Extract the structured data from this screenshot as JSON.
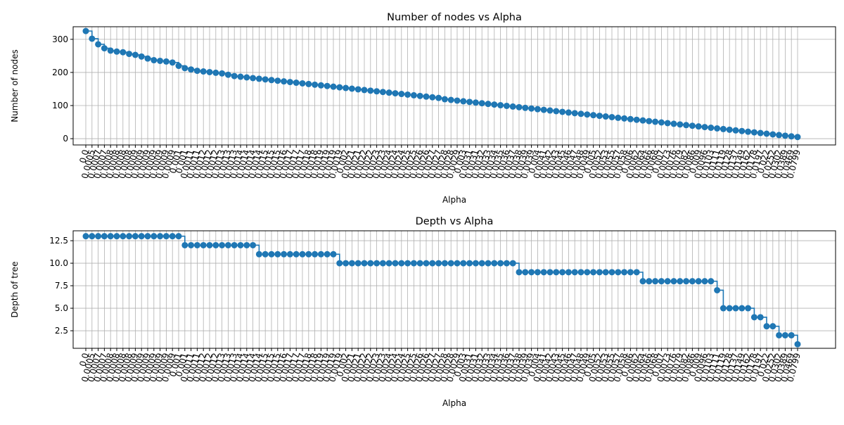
{
  "chart_data": [
    {
      "type": "line",
      "title": "Number of nodes vs Alpha",
      "xlabel": "Alpha",
      "ylabel": "Number of nodes",
      "drawstyle": "steps-post",
      "marker": "circle",
      "grid": true,
      "categories": [
        "0.0",
        "0.0005",
        "0.0007",
        "0.0007",
        "0.0008",
        "0.0008",
        "0.0008",
        "0.0008",
        "0.0009",
        "0.0009",
        "0.0009",
        "0.0009",
        "0.0009",
        "0.0009",
        "0.0009",
        "0.001",
        "0.001",
        "0.0011",
        "0.0011",
        "0.0012",
        "0.0012",
        "0.0012",
        "0.0013",
        "0.0013",
        "0.0013",
        "0.0014",
        "0.0014",
        "0.0014",
        "0.0014",
        "0.0015",
        "0.0015",
        "0.0015",
        "0.0016",
        "0.0017",
        "0.0017",
        "0.0017",
        "0.0018",
        "0.0018",
        "0.0019",
        "0.0019",
        "0.0019",
        "0.0019",
        "0.002",
        "0.0021",
        "0.0021",
        "0.0022",
        "0.0022",
        "0.0023",
        "0.0023",
        "0.0024",
        "0.0024",
        "0.0024",
        "0.0025",
        "0.0025",
        "0.0026",
        "0.0026",
        "0.0027",
        "0.0027",
        "0.0028",
        "0.0028",
        "0.0029",
        "0.003",
        "0.0031",
        "0.0031",
        "0.0032",
        "0.0033",
        "0.0034",
        "0.0035",
        "0.0036",
        "0.0037",
        "0.0038",
        "0.0039",
        "0.0039",
        "0.004",
        "0.0041",
        "0.0042",
        "0.0043",
        "0.0045",
        "0.0046",
        "0.0047",
        "0.0048",
        "0.0049",
        "0.005",
        "0.0052",
        "0.0053",
        "0.0055",
        "0.0057",
        "0.0058",
        "0.006",
        "0.0062",
        "0.0064",
        "0.0066",
        "0.0068",
        "0.007",
        "0.0073",
        "0.0076",
        "0.0079",
        "0.0082",
        "0.0086",
        "0.009",
        "0.0096",
        "0.0103",
        "0.0111",
        "0.0119",
        "0.0128",
        "0.0137",
        "0.0149",
        "0.0162",
        "0.0178",
        "0.0197",
        "0.022",
        "0.0252",
        "0.0302",
        "0.0389",
        "0.0469",
        "0.0799"
      ],
      "series": [
        {
          "name": "nodes",
          "color": "#1f77b4",
          "values": [
            325,
            302,
            285,
            273,
            266,
            263,
            261,
            256,
            253,
            248,
            242,
            237,
            235,
            233,
            230,
            220,
            213,
            209,
            205,
            203,
            201,
            199,
            197,
            193,
            189,
            187,
            185,
            183,
            181,
            179,
            177,
            175,
            173,
            171,
            169,
            167,
            165,
            163,
            161,
            159,
            157,
            155,
            153,
            151,
            149,
            147,
            145,
            143,
            141,
            139,
            137,
            135,
            133,
            131,
            129,
            127,
            125,
            123,
            119,
            117,
            115,
            113,
            111,
            109,
            107,
            105,
            103,
            101,
            99,
            97,
            95,
            93,
            91,
            89,
            87,
            85,
            83,
            81,
            79,
            77,
            75,
            73,
            71,
            69,
            67,
            65,
            63,
            61,
            59,
            57,
            55,
            53,
            51,
            49,
            47,
            45,
            43,
            41,
            39,
            37,
            35,
            33,
            31,
            29,
            27,
            25,
            23,
            21,
            19,
            17,
            15,
            13,
            11,
            9,
            7,
            5
          ]
        }
      ],
      "ylim": [
        -19,
        338
      ],
      "yticks": [
        0,
        100,
        200,
        300
      ]
    },
    {
      "type": "line",
      "title": "Depth vs Alpha",
      "xlabel": "Alpha",
      "ylabel": "Depth of tree",
      "drawstyle": "steps-post",
      "marker": "circle",
      "grid": true,
      "categories": [
        "0.0",
        "0.0005",
        "0.0007",
        "0.0007",
        "0.0008",
        "0.0008",
        "0.0008",
        "0.0008",
        "0.0009",
        "0.0009",
        "0.0009",
        "0.0009",
        "0.0009",
        "0.0009",
        "0.0009",
        "0.001",
        "0.001",
        "0.0011",
        "0.0011",
        "0.0012",
        "0.0012",
        "0.0012",
        "0.0013",
        "0.0013",
        "0.0013",
        "0.0014",
        "0.0014",
        "0.0014",
        "0.0014",
        "0.0015",
        "0.0015",
        "0.0015",
        "0.0016",
        "0.0017",
        "0.0017",
        "0.0017",
        "0.0018",
        "0.0018",
        "0.0019",
        "0.0019",
        "0.0019",
        "0.0019",
        "0.002",
        "0.0021",
        "0.0021",
        "0.0022",
        "0.0022",
        "0.0023",
        "0.0023",
        "0.0024",
        "0.0024",
        "0.0024",
        "0.0025",
        "0.0025",
        "0.0026",
        "0.0026",
        "0.0027",
        "0.0027",
        "0.0028",
        "0.0028",
        "0.0029",
        "0.003",
        "0.0031",
        "0.0031",
        "0.0032",
        "0.0033",
        "0.0034",
        "0.0035",
        "0.0036",
        "0.0037",
        "0.0038",
        "0.0039",
        "0.0039",
        "0.004",
        "0.0041",
        "0.0042",
        "0.0043",
        "0.0045",
        "0.0046",
        "0.0047",
        "0.0048",
        "0.0049",
        "0.005",
        "0.0052",
        "0.0053",
        "0.0055",
        "0.0057",
        "0.0058",
        "0.006",
        "0.0062",
        "0.0064",
        "0.0066",
        "0.0068",
        "0.007",
        "0.0073",
        "0.0076",
        "0.0079",
        "0.0082",
        "0.0086",
        "0.009",
        "0.0096",
        "0.0103",
        "0.0111",
        "0.0119",
        "0.0128",
        "0.0137",
        "0.0149",
        "0.0162",
        "0.0178",
        "0.0197",
        "0.022",
        "0.0252",
        "0.0302",
        "0.0389",
        "0.0469",
        "0.0799"
      ],
      "series": [
        {
          "name": "depth",
          "color": "#1f77b4",
          "values": [
            13,
            13,
            13,
            13,
            13,
            13,
            13,
            13,
            13,
            13,
            13,
            13,
            13,
            13,
            13,
            13,
            12,
            12,
            12,
            12,
            12,
            12,
            12,
            12,
            12,
            12,
            12,
            12,
            11,
            11,
            11,
            11,
            11,
            11,
            11,
            11,
            11,
            11,
            11,
            11,
            11,
            10,
            10,
            10,
            10,
            10,
            10,
            10,
            10,
            10,
            10,
            10,
            10,
            10,
            10,
            10,
            10,
            10,
            10,
            10,
            10,
            10,
            10,
            10,
            10,
            10,
            10,
            10,
            10,
            10,
            9,
            9,
            9,
            9,
            9,
            9,
            9,
            9,
            9,
            9,
            9,
            9,
            9,
            9,
            9,
            9,
            9,
            9,
            9,
            9,
            8,
            8,
            8,
            8,
            8,
            8,
            8,
            8,
            8,
            8,
            8,
            8,
            7,
            5,
            5,
            5,
            5,
            5,
            4,
            4,
            3,
            3,
            2,
            2,
            2,
            1
          ]
        }
      ],
      "ylim": [
        0.55,
        13.6
      ],
      "yticks": [
        2.5,
        {
          "value": 5,
          "label": "5.0"
        },
        7.5,
        {
          "value": 10,
          "label": "10.0"
        },
        12.5
      ]
    }
  ]
}
